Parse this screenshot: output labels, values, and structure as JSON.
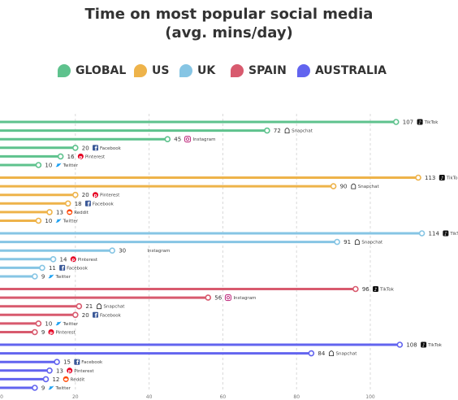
{
  "chart_data": {
    "type": "bar",
    "title": "Time on most popular social media",
    "subtitle": "(avg. mins/day)",
    "xlim": [
      0,
      120
    ],
    "x_ticks": [
      0,
      20,
      40,
      60,
      80,
      100
    ],
    "grid": true,
    "legend_placement": "top",
    "series": [
      {
        "name": "GLOBAL",
        "color": "#5ec28d",
        "items": [
          {
            "platform": "TikTok",
            "value": 107,
            "icon": "tiktok-icon"
          },
          {
            "platform": "Snapchat",
            "value": 72,
            "icon": "snapchat-icon"
          },
          {
            "platform": "Instagram",
            "value": 45,
            "icon": "instagram-icon"
          },
          {
            "platform": "Facebook",
            "value": 20,
            "icon": "facebook-icon"
          },
          {
            "platform": "Pinterest",
            "value": 16,
            "icon": "pinterest-icon"
          },
          {
            "platform": "Twitter",
            "value": 10,
            "icon": "twitter-icon"
          }
        ]
      },
      {
        "name": "US",
        "color": "#eeb34a",
        "items": [
          {
            "platform": "TikTok",
            "value": 113,
            "icon": "tiktok-icon"
          },
          {
            "platform": "Snapchat",
            "value": 90,
            "icon": "snapchat-icon"
          },
          {
            "platform": "Pinterest",
            "value": 20,
            "icon": "pinterest-icon"
          },
          {
            "platform": "Facebook",
            "value": 18,
            "icon": "facebook-icon"
          },
          {
            "platform": "Reddit",
            "value": 13,
            "icon": "reddit-icon"
          },
          {
            "platform": "Twitter",
            "value": 10,
            "icon": "twitter-icon"
          }
        ]
      },
      {
        "name": "UK",
        "color": "#86c5e4",
        "items": [
          {
            "platform": "TikTok",
            "value": 114,
            "icon": "tiktok-icon"
          },
          {
            "platform": "Snapchat",
            "value": 91,
            "icon": "snapchat-icon"
          },
          {
            "platform": "Instagram",
            "value": 30,
            "icon": ""
          },
          {
            "platform": "Pinterest",
            "value": 14,
            "icon": "pinterest-icon"
          },
          {
            "platform": "Facebook",
            "value": 11,
            "icon": "facebook-icon"
          },
          {
            "platform": "Twitter",
            "value": 9,
            "icon": "twitter-icon"
          }
        ]
      },
      {
        "name": "SPAIN",
        "color": "#d85a6e",
        "items": [
          {
            "platform": "TikTok",
            "value": 96,
            "icon": "tiktok-icon"
          },
          {
            "platform": "Instagram",
            "value": 56,
            "icon": "instagram-icon"
          },
          {
            "platform": "Snapchat",
            "value": 21,
            "icon": "snapchat-icon"
          },
          {
            "platform": "Facebook",
            "value": 20,
            "icon": "facebook-icon"
          },
          {
            "platform": "Twitter",
            "value": 10,
            "icon": "twitter-icon"
          },
          {
            "platform": "Pinterest",
            "value": 9,
            "icon": "pinterest-icon"
          }
        ]
      },
      {
        "name": "AUSTRALIA",
        "color": "#6264ef",
        "items": [
          {
            "platform": "TikTok",
            "value": 108,
            "icon": "tiktok-icon"
          },
          {
            "platform": "Snapchat",
            "value": 84,
            "icon": "snapchat-icon"
          },
          {
            "platform": "Facebook",
            "value": 15,
            "icon": "facebook-icon"
          },
          {
            "platform": "Pinterest",
            "value": 13,
            "icon": "pinterest-icon"
          },
          {
            "platform": "Reddit",
            "value": 12,
            "icon": "reddit-icon"
          },
          {
            "platform": "Twitter",
            "value": 9,
            "icon": "twitter-icon"
          }
        ]
      }
    ]
  }
}
